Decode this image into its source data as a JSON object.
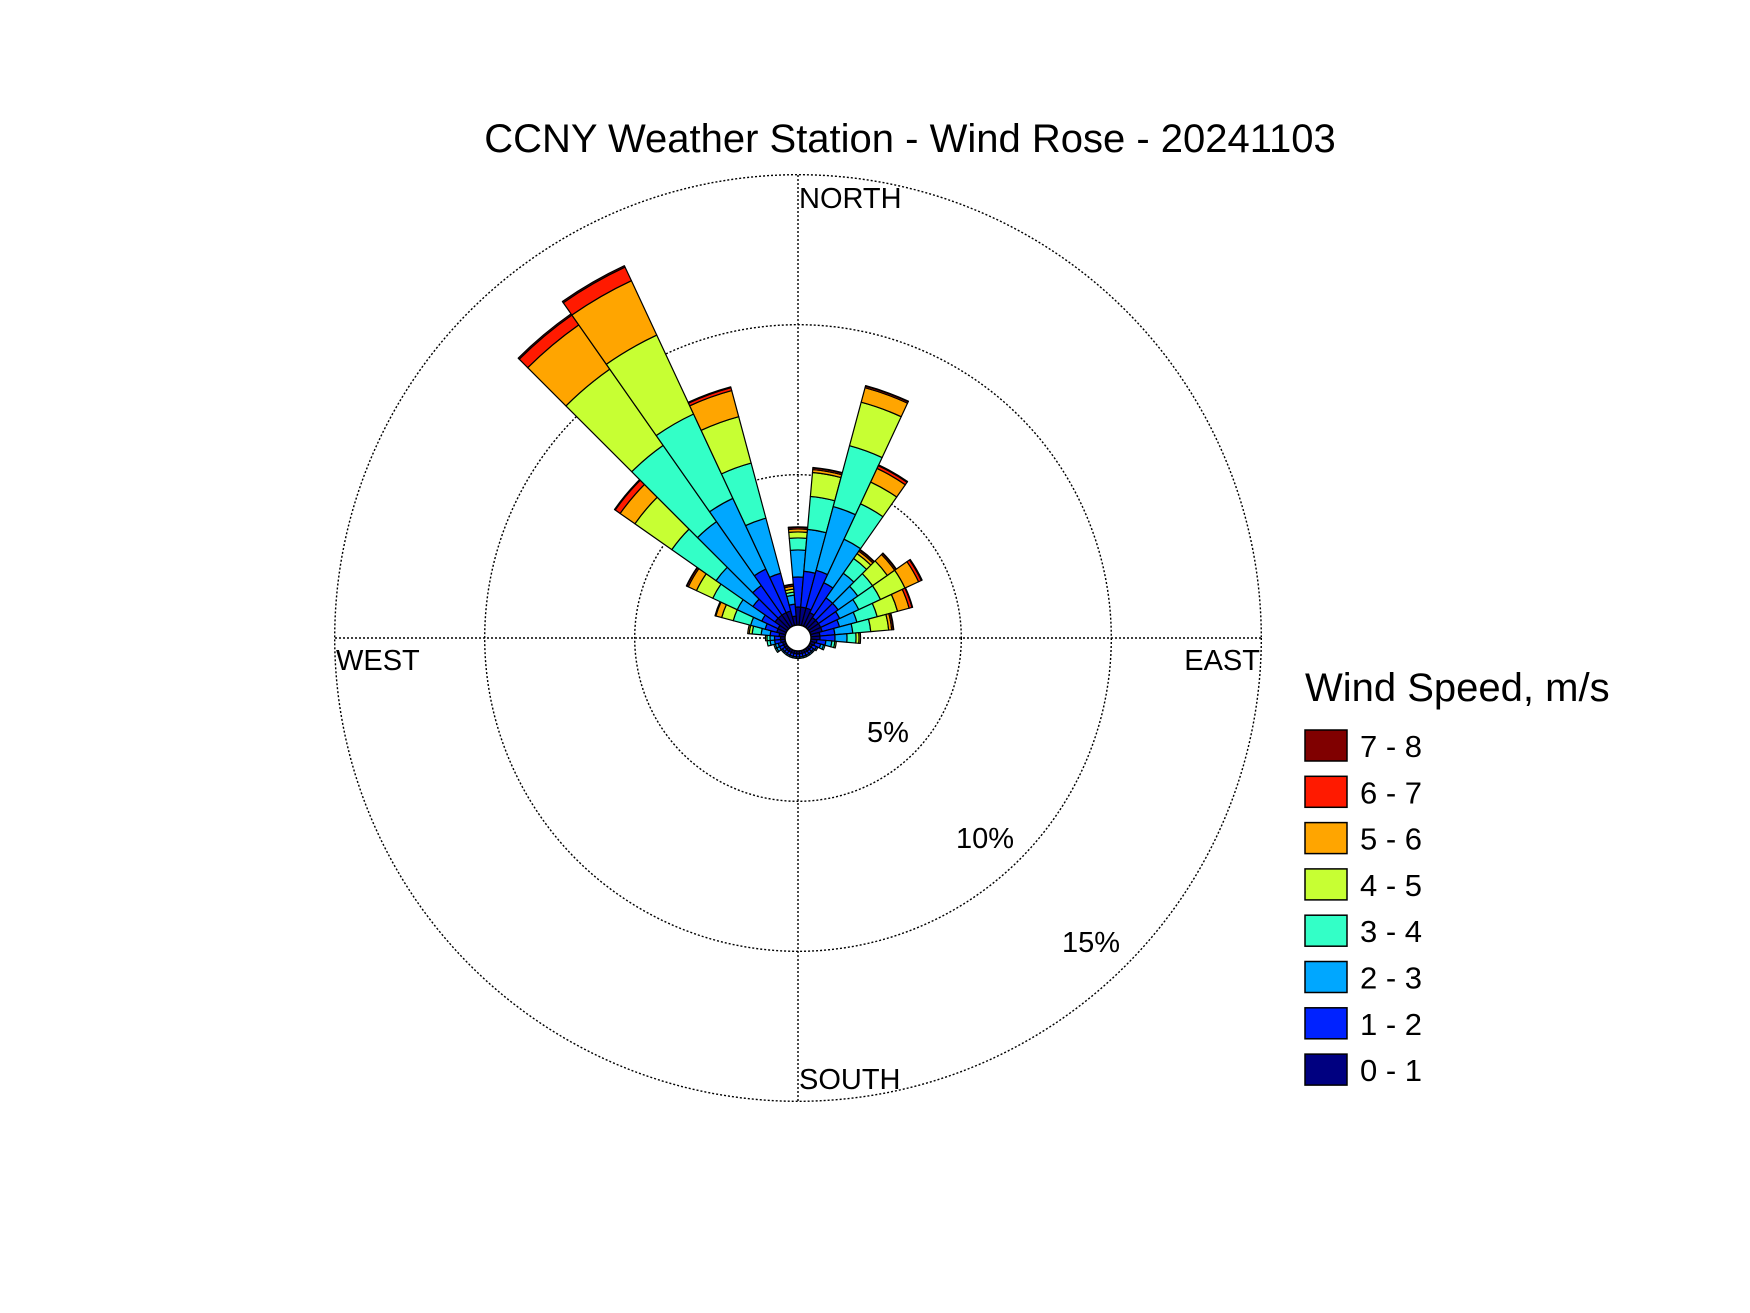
{
  "chart_data": {
    "type": "wind-rose",
    "title": "CCNY Weather Station - Wind Rose - 20241103",
    "directions": {
      "north": "NORTH",
      "south": "SOUTH",
      "east": "EAST",
      "west": "WEST"
    },
    "radial_ticks": [
      5,
      10,
      15
    ],
    "radial_tick_labels": [
      "5%",
      "10%",
      "15%"
    ],
    "rmax": 15,
    "sector_width_deg": 10,
    "legend_title": "Wind Speed, m/s",
    "bins": [
      {
        "label": "0 - 1",
        "color": "#000080"
      },
      {
        "label": "1 - 2",
        "color": "#0022ff"
      },
      {
        "label": "2 - 3",
        "color": "#00a7ff"
      },
      {
        "label": "3 - 4",
        "color": "#33ffc7"
      },
      {
        "label": "4 - 5",
        "color": "#c7ff33"
      },
      {
        "label": "5 - 6",
        "color": "#ffa500"
      },
      {
        "label": "6 - 7",
        "color": "#ff1a00"
      },
      {
        "label": "7 - 8",
        "color": "#800000"
      }
    ],
    "sectors": [
      {
        "dir": 0,
        "values": [
          0.6,
          1.0,
          0.9,
          0.4,
          0.2,
          0.1,
          0.05,
          0.02
        ]
      },
      {
        "dir": 10,
        "values": [
          0.6,
          1.2,
          1.4,
          1.1,
          0.8,
          0.1,
          0.05,
          0.02
        ]
      },
      {
        "dir": 20,
        "values": [
          0.6,
          1.3,
          2.2,
          2.1,
          1.5,
          0.5,
          0.05,
          0.02
        ]
      },
      {
        "dir": 30,
        "values": [
          0.5,
          1.1,
          1.6,
          1.3,
          0.8,
          0.5,
          0.1,
          0.03
        ]
      },
      {
        "dir": 40,
        "values": [
          0.4,
          0.8,
          1.0,
          0.6,
          0.2,
          0.1,
          0.05,
          0.02
        ]
      },
      {
        "dir": 50,
        "values": [
          0.4,
          0.8,
          0.8,
          0.6,
          0.6,
          0.3,
          0.05,
          0.02
        ]
      },
      {
        "dir": 60,
        "values": [
          0.4,
          0.7,
          0.7,
          0.8,
          0.9,
          0.5,
          0.1,
          0.03
        ]
      },
      {
        "dir": 70,
        "values": [
          0.4,
          0.6,
          0.6,
          0.7,
          0.7,
          0.4,
          0.1,
          0.02
        ]
      },
      {
        "dir": 80,
        "values": [
          0.3,
          0.5,
          0.6,
          0.6,
          0.6,
          0.1,
          0.05,
          0.02
        ]
      },
      {
        "dir": 90,
        "values": [
          0.3,
          0.5,
          0.4,
          0.3,
          0.1,
          0.05,
          0.0,
          0.0
        ]
      },
      {
        "dir": 100,
        "values": [
          0.2,
          0.3,
          0.2,
          0.1,
          0.05,
          0.0,
          0.0,
          0.0
        ]
      },
      {
        "dir": 110,
        "values": [
          0.15,
          0.2,
          0.1,
          0.05,
          0.0,
          0.0,
          0.0,
          0.0
        ]
      },
      {
        "dir": 120,
        "values": [
          0.1,
          0.15,
          0.05,
          0.0,
          0.0,
          0.0,
          0.0,
          0.0
        ]
      },
      {
        "dir": 130,
        "values": [
          0.1,
          0.1,
          0.05,
          0.0,
          0.0,
          0.0,
          0.0,
          0.0
        ]
      },
      {
        "dir": 140,
        "values": [
          0.1,
          0.1,
          0.05,
          0.0,
          0.0,
          0.0,
          0.0,
          0.0
        ]
      },
      {
        "dir": 150,
        "values": [
          0.1,
          0.1,
          0.05,
          0.0,
          0.0,
          0.0,
          0.0,
          0.0
        ]
      },
      {
        "dir": 160,
        "values": [
          0.1,
          0.1,
          0.05,
          0.0,
          0.0,
          0.0,
          0.0,
          0.0
        ]
      },
      {
        "dir": 170,
        "values": [
          0.1,
          0.1,
          0.05,
          0.0,
          0.0,
          0.0,
          0.0,
          0.0
        ]
      },
      {
        "dir": 180,
        "values": [
          0.1,
          0.1,
          0.05,
          0.0,
          0.0,
          0.0,
          0.0,
          0.0
        ]
      },
      {
        "dir": 190,
        "values": [
          0.1,
          0.1,
          0.05,
          0.0,
          0.0,
          0.0,
          0.0,
          0.0
        ]
      },
      {
        "dir": 200,
        "values": [
          0.1,
          0.1,
          0.05,
          0.0,
          0.0,
          0.0,
          0.0,
          0.0
        ]
      },
      {
        "dir": 210,
        "values": [
          0.1,
          0.1,
          0.05,
          0.0,
          0.0,
          0.0,
          0.0,
          0.0
        ]
      },
      {
        "dir": 220,
        "values": [
          0.1,
          0.1,
          0.05,
          0.0,
          0.0,
          0.0,
          0.0,
          0.0
        ]
      },
      {
        "dir": 230,
        "values": [
          0.1,
          0.1,
          0.05,
          0.0,
          0.0,
          0.0,
          0.0,
          0.0
        ]
      },
      {
        "dir": 240,
        "values": [
          0.1,
          0.15,
          0.1,
          0.05,
          0.0,
          0.0,
          0.0,
          0.0
        ]
      },
      {
        "dir": 250,
        "values": [
          0.1,
          0.15,
          0.1,
          0.05,
          0.0,
          0.0,
          0.0,
          0.0
        ]
      },
      {
        "dir": 260,
        "values": [
          0.15,
          0.2,
          0.15,
          0.1,
          0.0,
          0.0,
          0.0,
          0.0
        ]
      },
      {
        "dir": 270,
        "values": [
          0.15,
          0.2,
          0.15,
          0.1,
          0.05,
          0.0,
          0.0,
          0.0
        ]
      },
      {
        "dir": 280,
        "values": [
          0.2,
          0.3,
          0.3,
          0.3,
          0.1,
          0.05,
          0.0,
          0.0
        ]
      },
      {
        "dir": 290,
        "values": [
          0.3,
          0.4,
          0.5,
          0.6,
          0.4,
          0.2,
          0.03,
          0.0
        ]
      },
      {
        "dir": 300,
        "values": [
          0.3,
          0.6,
          0.9,
          0.9,
          0.6,
          0.3,
          0.05,
          0.02
        ]
      },
      {
        "dir": 310,
        "values": [
          0.5,
          0.9,
          1.5,
          1.8,
          1.5,
          0.6,
          0.2,
          0.03
        ]
      },
      {
        "dir": 320,
        "values": [
          0.5,
          1.2,
          2.6,
          3.1,
          3.1,
          1.8,
          0.4,
          0.05
        ]
      },
      {
        "dir": 330,
        "values": [
          0.5,
          1.6,
          2.6,
          3.1,
          2.9,
          2.0,
          0.5,
          0.05
        ]
      },
      {
        "dir": 340,
        "values": [
          0.5,
          1.3,
          1.9,
          1.9,
          1.6,
          0.9,
          0.1,
          0.03
        ]
      },
      {
        "dir": 350,
        "values": [
          0.3,
          0.4,
          0.3,
          0.1,
          0.1,
          0.1,
          0.05,
          0.02
        ]
      }
    ]
  }
}
